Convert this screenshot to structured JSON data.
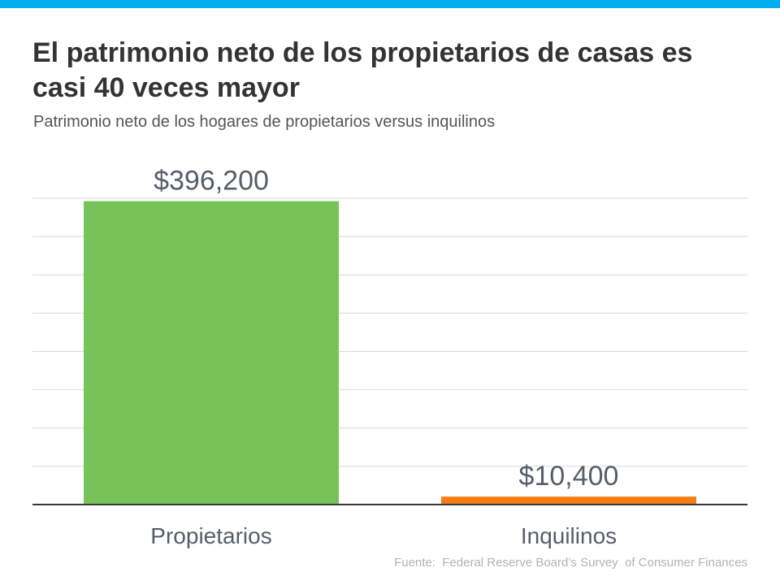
{
  "header": {
    "title": "El patrimonio neto de los propietarios de casas es casi 40 veces mayor",
    "subtitle": "Patrimonio neto de los hogares de propietarios versus inquilinos"
  },
  "footer": {
    "source": "Fuente:  Federal Reserve Board’s Survey  of Consumer Finances"
  },
  "colors": {
    "accent_bar": "#00aeef",
    "propietarios": "#77c35a",
    "inquilinos": "#f47d15",
    "text_dark": "#333333",
    "label": "#555e6b",
    "grid": "#d9d9d9"
  },
  "chart_data": {
    "type": "bar",
    "categories": [
      "Propietarios",
      "Inquilinos"
    ],
    "values": [
      396200,
      10400
    ],
    "value_labels": [
      "$396,200",
      "$10,400"
    ],
    "bar_colors": [
      "#77c35a",
      "#f47d15"
    ],
    "ylim": [
      0,
      400000
    ],
    "grid": true,
    "title": "El patrimonio neto de los propietarios de casas es casi 40 veces mayor",
    "subtitle": "Patrimonio neto de los hogares de propietarios versus inquilinos",
    "xlabel": "",
    "ylabel": ""
  }
}
